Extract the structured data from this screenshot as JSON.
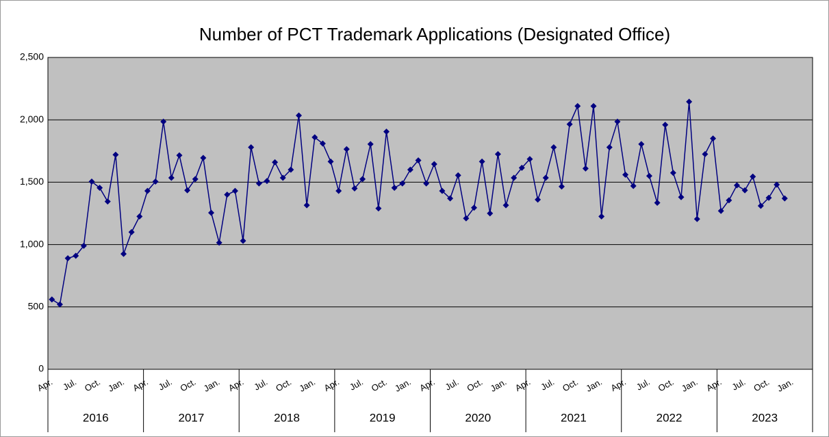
{
  "chart_data": {
    "type": "line",
    "title": "Number of PCT Trademark Applications (Designated Office)",
    "categories": [
      "Apr.",
      null,
      null,
      "Jul.",
      null,
      null,
      "Oct.",
      null,
      null,
      "Jan.",
      null,
      null,
      "Apr.",
      null,
      null,
      "Jul.",
      null,
      null,
      "Oct.",
      null,
      null,
      "Jan.",
      null,
      null,
      "Apr.",
      null,
      null,
      "Jul.",
      null,
      null,
      "Oct.",
      null,
      null,
      "Jan.",
      null,
      null,
      "Apr.",
      null,
      null,
      "Jul.",
      null,
      null,
      "Oct.",
      null,
      null,
      "Jan.",
      null,
      null,
      "Apr.",
      null,
      null,
      "Jul.",
      null,
      null,
      "Oct.",
      null,
      null,
      "Jan.",
      null,
      null,
      "Apr.",
      null,
      null,
      "Jul.",
      null,
      null,
      "Oct.",
      null,
      null,
      "Jan.",
      null,
      null,
      "Apr.",
      null,
      null,
      "Jul.",
      null,
      null,
      "Oct.",
      null,
      null,
      "Jan.",
      null,
      null,
      "Apr.",
      null,
      null,
      "Jul.",
      null,
      null,
      "Oct.",
      null,
      null,
      "Jan.",
      null,
      null
    ],
    "years": [
      "2016",
      "2017",
      "2018",
      "2019",
      "2020",
      "2021",
      "2022",
      "2023"
    ],
    "series": [
      {
        "name": "Applications",
        "color": "#000080",
        "values": [
          560,
          520,
          890,
          910,
          990,
          1505,
          1455,
          1345,
          1720,
          925,
          1100,
          1225,
          1430,
          1505,
          1985,
          1535,
          1715,
          1435,
          1525,
          1695,
          1255,
          1015,
          1400,
          1430,
          1030,
          1780,
          1490,
          1510,
          1660,
          1535,
          1600,
          2035,
          1315,
          1860,
          1810,
          1665,
          1430,
          1765,
          1450,
          1525,
          1805,
          1290,
          1905,
          1455,
          1490,
          1600,
          1675,
          1490,
          1645,
          1430,
          1370,
          1555,
          1210,
          1295,
          1665,
          1250,
          1725,
          1315,
          1535,
          1615,
          1685,
          1360,
          1535,
          1780,
          1465,
          1965,
          2110,
          1610,
          2110,
          1225,
          1780,
          1985,
          1560,
          1470,
          1805,
          1550,
          1335,
          1960,
          1575,
          1380,
          2145,
          1205,
          1725,
          1850,
          1270,
          1355,
          1475,
          1435,
          1545,
          1310,
          1375,
          1480,
          1370,
          null,
          null,
          null
        ]
      }
    ],
    "ylim": [
      0,
      2500
    ],
    "yticks": [
      0,
      500,
      {
        "value": 1000,
        "label": "1,000"
      },
      {
        "value": 1500,
        "label": "1,500"
      },
      {
        "value": 2000,
        "label": "2,000"
      },
      {
        "value": 2500,
        "label": "2,500"
      }
    ],
    "grid": true
  }
}
